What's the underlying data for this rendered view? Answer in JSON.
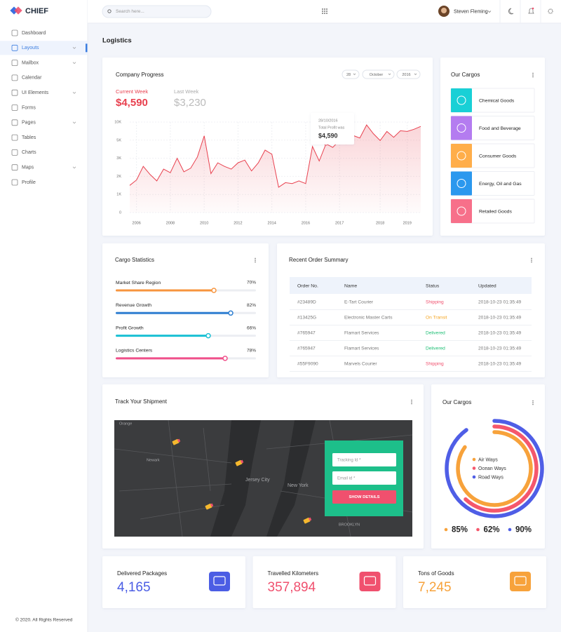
{
  "brand": "CHIEF",
  "sidebar": {
    "items": [
      "Dashboard",
      "Layouts",
      "Mailbox",
      "Calendar",
      "UI Elements",
      "Forms",
      "Pages",
      "Tables",
      "Charts",
      "Maps",
      "Profile"
    ],
    "active": 1,
    "expandable": [
      1,
      2,
      4,
      6,
      9
    ],
    "footer": "© 2020. All Rights Reserved"
  },
  "header": {
    "search": "Search here...",
    "user": "Steven Fleming"
  },
  "page_title": "Logistics",
  "progress": {
    "title": "Company Progress",
    "filters": [
      "28",
      "October",
      "2016"
    ],
    "current_label": "Current Week",
    "current": "$4,590",
    "last_label": "Last Week",
    "last": "$3,230",
    "tooltip": {
      "date": "28/10/2016",
      "label": "Total Profit was",
      "value": "$4,590"
    }
  },
  "cargos": {
    "title": "Our Cargos",
    "items": [
      {
        "label": "Chemical Goods",
        "color": "#19d0d6"
      },
      {
        "label": "Food and Beverage",
        "color": "#b47cf0"
      },
      {
        "label": "Consumer Goods",
        "color": "#ffae4a"
      },
      {
        "label": "Energy, Oil and Gas",
        "color": "#2b98ee"
      },
      {
        "label": "Retailed Goods",
        "color": "#f7708a"
      }
    ]
  },
  "cargo_stats": {
    "title": "Cargo Statistics"
  },
  "orders": {
    "title": "Recent Order Summary",
    "columns": [
      "Order No.",
      "Name",
      "Status",
      "Updated"
    ],
    "rows": [
      {
        "order": "#23489D",
        "name": "E-Tart Courier",
        "status": "Shipping",
        "status_color": "#f0506e",
        "updated": "2018-10-23  01:35:49"
      },
      {
        "order": "#13425G",
        "name": "Electronic Master Carts",
        "status": "On Transit",
        "status_color": "#f5a623",
        "updated": "2018-10-23  01:35:49"
      },
      {
        "order": "#765947",
        "name": "Flamart Services",
        "status": "Delivered",
        "status_color": "#1fbf75",
        "updated": "2018-10-23  01:35:49"
      },
      {
        "order": "#765947",
        "name": "Flamart Services",
        "status": "Delivered",
        "status_color": "#1fbf75",
        "updated": "2018-10-23  01:35:49"
      },
      {
        "order": "#55F9090",
        "name": "Marvels Courier",
        "status": "Shipping",
        "status_color": "#f0506e",
        "updated": "2018-10-23  01:35:49"
      }
    ]
  },
  "shipment": {
    "title": "Track Your Shipment",
    "map_labels": [
      "Orange",
      "Newark",
      "Jersey City",
      "New York",
      "BROOKLYN"
    ],
    "fields": [
      "Tracking Id *",
      "Email id *"
    ],
    "button": "SHOW DETAILS"
  },
  "cargo_ways": {
    "title": "Our Cargos"
  },
  "stats": [
    {
      "label": "Delivered Packages",
      "value": "4,165",
      "color": "#4b5de4"
    },
    {
      "label": "Travelled Kilometers",
      "value": "357,894",
      "color": "#f0506e"
    },
    {
      "label": "Tons of Goods",
      "value": "7,245",
      "color": "#f7a23b"
    }
  ],
  "chart_data": [
    {
      "type": "line",
      "categories": [
        null,
        "2006",
        null,
        null,
        null,
        null,
        "2008",
        null,
        null,
        null,
        null,
        "2010",
        null,
        null,
        null,
        null,
        "2012",
        null,
        null,
        null,
        null,
        "2014",
        null,
        null,
        null,
        null,
        "2016",
        null,
        null,
        null,
        null,
        "2017",
        null,
        null,
        null,
        null,
        null,
        "2018",
        null,
        null,
        null,
        "2019",
        null,
        null
      ],
      "values": [
        1500,
        1800,
        2550,
        2100,
        1750,
        2400,
        2200,
        3000,
        2250,
        2450,
        3150,
        6200,
        2150,
        2750,
        2550,
        2400,
        2750,
        2900,
        2300,
        2750,
        3900,
        3450,
        1400,
        1650,
        1600,
        1750,
        1600,
        4300,
        2850,
        4590,
        4200,
        4950,
        4550,
        6300,
        5600,
        9200,
        6800,
        4950,
        7400,
        5800,
        7600,
        7400,
        8000,
        8800
      ],
      "color": "#e8414f",
      "ylim": [
        0,
        10000
      ],
      "yticks": [
        0,
        {
          "value": 1000,
          "label": "1K"
        },
        {
          "value": 2000,
          "label": "2K"
        },
        {
          "value": 3000,
          "label": "3K"
        },
        {
          "value": 5000,
          "label": "5K"
        },
        {
          "value": 10000,
          "label": "10K"
        }
      ],
      "grid": true
    },
    {
      "type": "progress",
      "categories": [
        "Market Share Region",
        "Revenue Growth",
        "Profit Growth",
        "Logistics Centers"
      ],
      "values": [
        70,
        82,
        66,
        78
      ],
      "value_labels": [
        "70%",
        "82%",
        "66%",
        "78%"
      ],
      "colors": [
        "#f7953e",
        "#2f7fd1",
        "#19c0d4",
        "#f0508a"
      ],
      "xlim": [
        0,
        100
      ]
    },
    {
      "type": "radial",
      "series": [
        {
          "name": "Air Ways",
          "color": "#f7a23b",
          "values": [
            85
          ],
          "value_labels": [
            "85%"
          ]
        },
        {
          "name": "Ocean Ways",
          "color": "#f5576c",
          "values": [
            62
          ],
          "value_labels": [
            "62%"
          ]
        },
        {
          "name": "Road Ways",
          "color": "#4f5ee6",
          "values": [
            90
          ],
          "value_labels": [
            "90%"
          ]
        }
      ],
      "ylim": [
        0,
        100
      ]
    }
  ]
}
